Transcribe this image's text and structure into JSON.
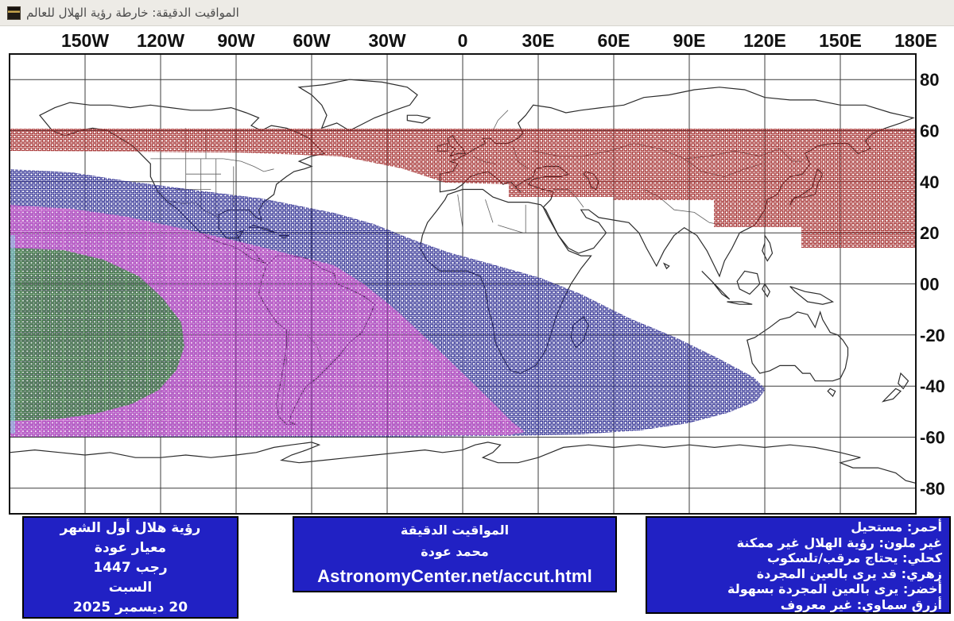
{
  "window": {
    "title": "المواقيت الدقيقة: خارطة رؤية الهلال للعالم"
  },
  "map": {
    "longitude_labels": [
      "150W",
      "120W",
      "90W",
      "60W",
      "30W",
      "0",
      "30E",
      "60E",
      "90E",
      "120E",
      "150E",
      "180E"
    ],
    "latitude_labels": [
      "80",
      "60",
      "40",
      "20",
      "00",
      "-20",
      "-40",
      "-60",
      "-80"
    ],
    "regions": [
      {
        "key": "impossible",
        "color": "#a02525",
        "meaning": "أحمر: مستحيل"
      },
      {
        "key": "not_possible_uncolored",
        "color": "#ffffff",
        "meaning": "غير ملون: رؤية الهلال غير ممكنة"
      },
      {
        "key": "telescope_needed",
        "color": "#26268e",
        "meaning": "كحلي: يحتاج مرقب/تلسكوب"
      },
      {
        "key": "maybe_naked_eye",
        "color": "#c950c9",
        "meaning": "زهري: قد يرى بالعين المجردة"
      },
      {
        "key": "easy_naked_eye",
        "color": "#2e7d32",
        "meaning": "أخضر: يرى بالعين المجردة بسهولة"
      },
      {
        "key": "unknown",
        "color": "#8fd4e8",
        "meaning": "أزرق سماوي: غير معروف"
      }
    ]
  },
  "footer": {
    "left_box": {
      "lines": [
        "رؤية هلال أول الشهر",
        "معيار عودة",
        "رجب 1447",
        "السبت",
        "20 ديسمبر 2025"
      ]
    },
    "center_box": {
      "lines": [
        "المواقيت الدقيقة",
        "محمد عودة"
      ],
      "url": "AstronomyCenter.net/accut.html"
    },
    "legend_box": {
      "lines": [
        "أحمر: مستحيل",
        "غير ملون: رؤية الهلال غير ممكنة",
        "كحلي: يحتاج مرقب/تلسكوب",
        "زهري: قد يرى بالعين المجردة",
        "أخضر: يرى بالعين المجردة بسهولة",
        "أزرق سماوي: غير معروف"
      ]
    }
  }
}
